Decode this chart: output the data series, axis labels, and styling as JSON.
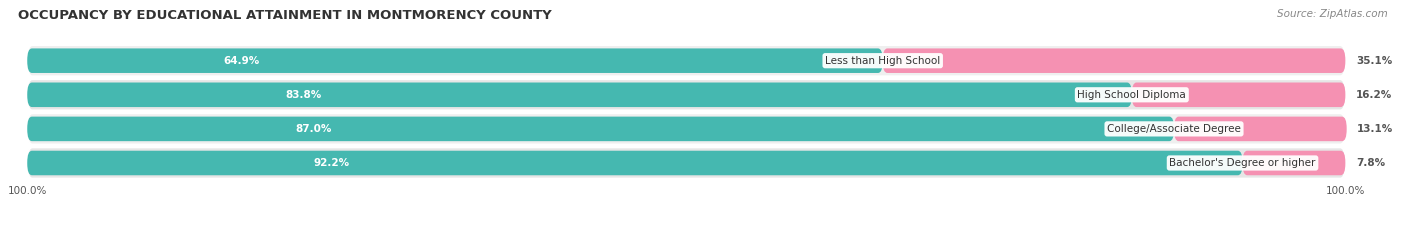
{
  "title": "OCCUPANCY BY EDUCATIONAL ATTAINMENT IN MONTMORENCY COUNTY",
  "source": "Source: ZipAtlas.com",
  "categories": [
    "Less than High School",
    "High School Diploma",
    "College/Associate Degree",
    "Bachelor's Degree or higher"
  ],
  "owner_values": [
    64.9,
    83.8,
    87.0,
    92.2
  ],
  "renter_values": [
    35.1,
    16.2,
    13.1,
    7.8
  ],
  "owner_color": "#45b8b0",
  "renter_color": "#f591b2",
  "row_bg_color_odd": "#efefef",
  "row_bg_color_even": "#e6e6e6",
  "title_fontsize": 9.5,
  "label_fontsize": 8,
  "value_fontsize": 7.5,
  "tick_fontsize": 7.5,
  "legend_fontsize": 8,
  "source_fontsize": 7.5
}
